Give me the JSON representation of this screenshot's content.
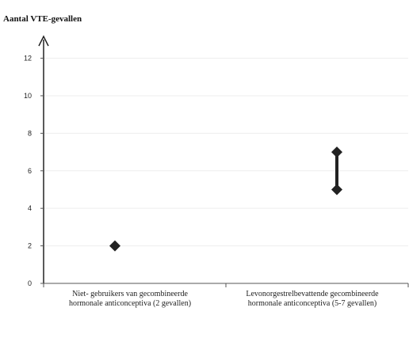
{
  "chart_data": {
    "type": "scatter",
    "title": "Aantal VTE-gevallen",
    "xlabel": "",
    "ylabel": "",
    "ylim": [
      0,
      13.5
    ],
    "yticks": [
      0,
      2,
      4,
      6,
      8,
      10,
      12
    ],
    "grid": true,
    "categories": [
      [
        "Niet- gebruikers van gecombineerde",
        "hormonale anticonceptiva (2 gevallen)"
      ],
      [
        "Levonorgestrelbevattende gecombineerde",
        "hormonale anticonceptiva (5-7 gevallen)"
      ]
    ],
    "points": [
      {
        "category": 0,
        "value": 2
      },
      {
        "category": 1,
        "value": 5
      },
      {
        "category": 1,
        "value": 7
      }
    ],
    "ranges": [
      {
        "category": 1,
        "low": 5,
        "high": 7
      }
    ],
    "colors": {
      "marker": "#222222",
      "axis": "#555555",
      "grid": "#eeeeee"
    }
  }
}
